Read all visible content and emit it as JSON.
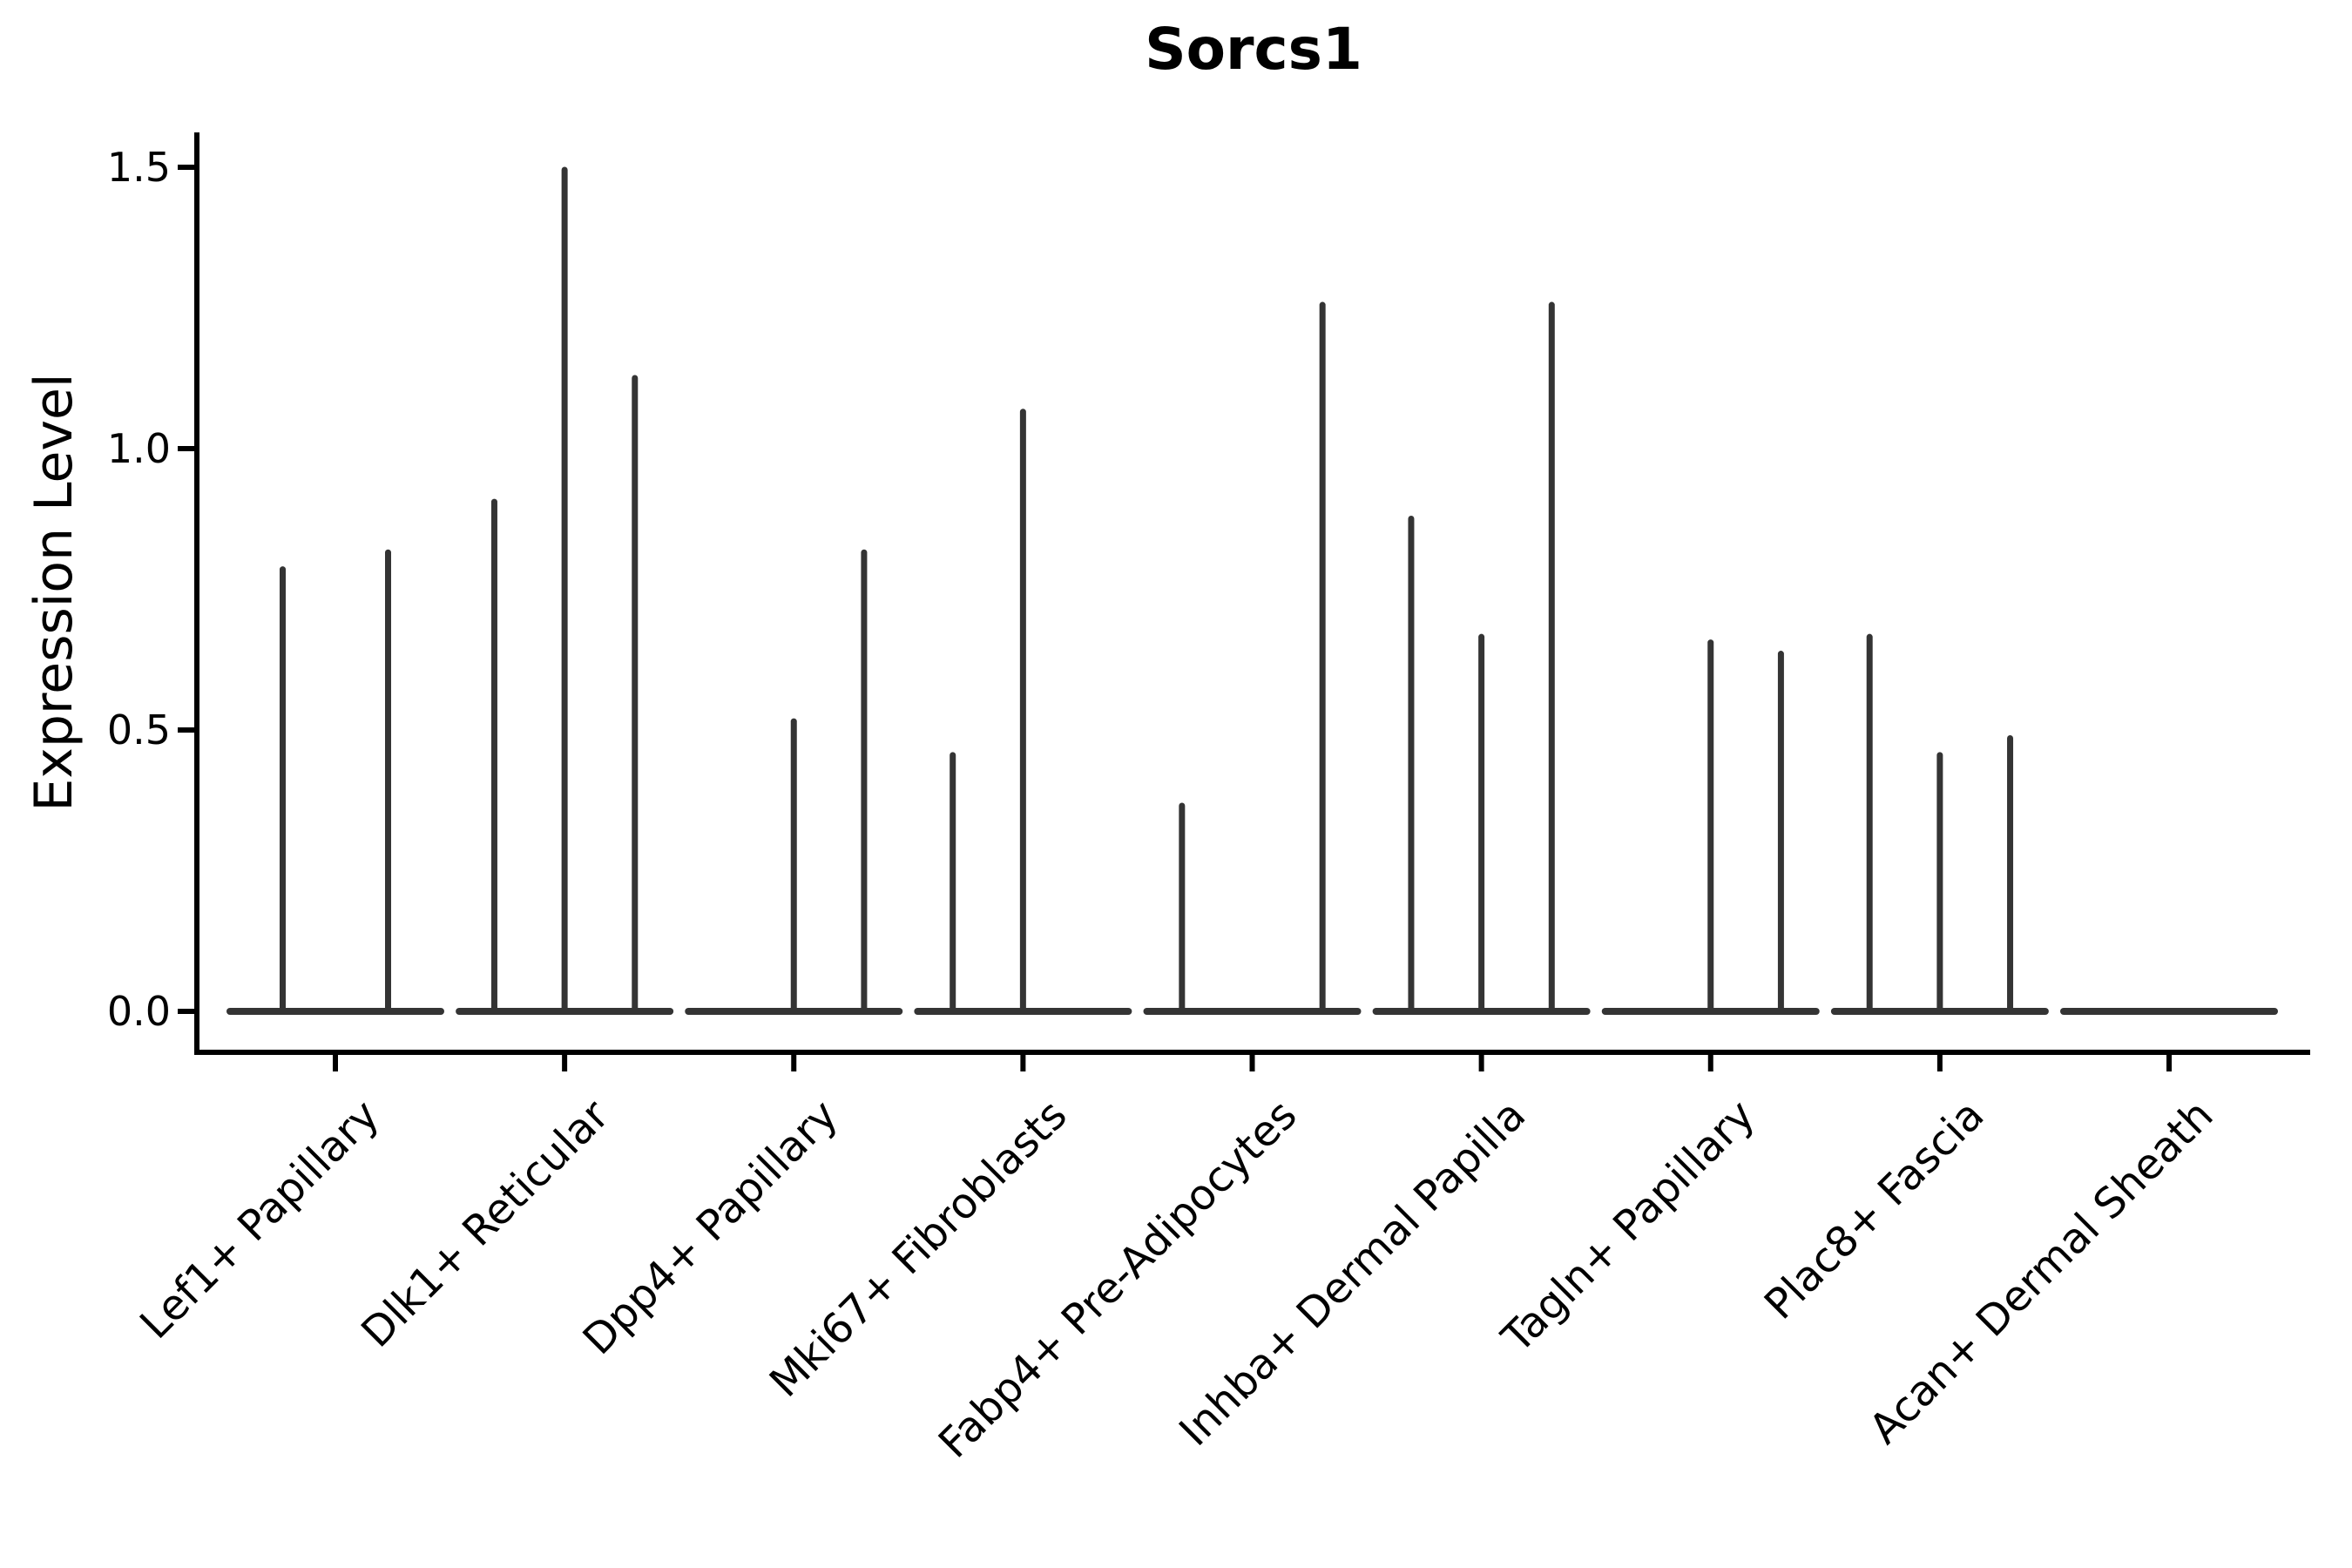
{
  "chart_data": {
    "type": "violin",
    "title": "Sorcs1",
    "ylabel": "Expression Level",
    "xlabel": "",
    "yticks": [
      "0.0",
      "0.5",
      "1.0",
      "1.5"
    ],
    "ytick_values": [
      0,
      0.5,
      1.0,
      1.5
    ],
    "ylim": [
      -0.07,
      1.55
    ],
    "grid": false,
    "legend": null,
    "categories": [
      "Lef1+ Papillary",
      "Dlk1+ Reticular",
      "Dpp4+ Papillary",
      "Mki67+ Fibroblasts",
      "Fabp4+ Pre-Adipocytes",
      "Inhba+ Dermal Papilla",
      "Tagln+ Papillary",
      "Plac8+ Fascia",
      "Acan+ Dermal Sheath"
    ],
    "groups": [
      {
        "category": "Lef1+ Papillary",
        "violin_maxima": [
          0.79,
          0.82
        ]
      },
      {
        "category": "Dlk1+ Reticular",
        "violin_maxima": [
          0.91,
          1.5,
          1.13
        ]
      },
      {
        "category": "Dpp4+ Papillary",
        "violin_maxima": [
          0,
          0.52,
          0.82
        ]
      },
      {
        "category": "Mki67+ Fibroblasts",
        "violin_maxima": [
          0.46,
          1.07,
          0
        ]
      },
      {
        "category": "Fabp4+ Pre-Adipocytes",
        "violin_maxima": [
          0.37,
          0,
          1.26
        ]
      },
      {
        "category": "Inhba+ Dermal Papilla",
        "violin_maxima": [
          0.88,
          0.67,
          1.26
        ]
      },
      {
        "category": "Tagln+ Papillary",
        "violin_maxima": [
          0,
          0.66,
          0.64
        ]
      },
      {
        "category": "Plac8+ Fascia",
        "violin_maxima": [
          0.67,
          0.46,
          0.49
        ]
      },
      {
        "category": "Acan+ Dermal Sheath",
        "violin_maxima": [
          0,
          0,
          0
        ]
      }
    ],
    "colors": {
      "violin": "#343434",
      "axis": "#000000",
      "text": "#000000",
      "background": "#ffffff"
    }
  }
}
